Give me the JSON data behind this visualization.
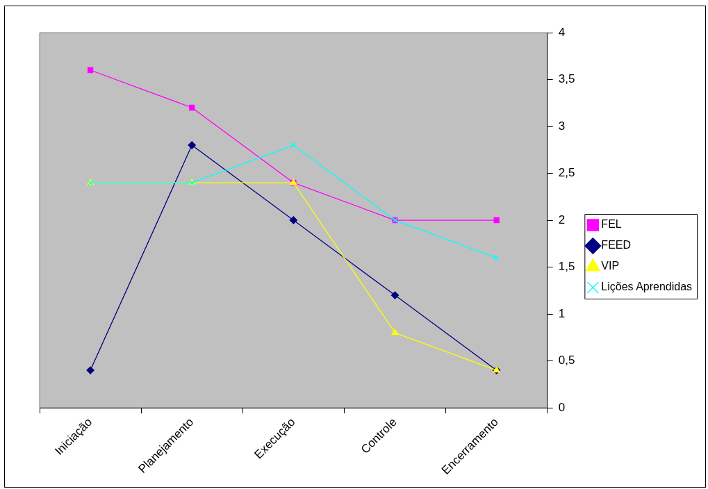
{
  "chart_data": {
    "type": "line",
    "categories": [
      "Iniciação",
      "Planejamento",
      "Execução",
      "Controle",
      "Encerramento"
    ],
    "series": [
      {
        "name": "FEL",
        "color": "#ff00ff",
        "marker": "square",
        "values": [
          3.6,
          3.2,
          2.4,
          2.0,
          2.0
        ]
      },
      {
        "name": "FEED",
        "color": "#000080",
        "marker": "diamond",
        "values": [
          0.4,
          2.8,
          2.0,
          1.2,
          0.4
        ]
      },
      {
        "name": "VIP",
        "color": "#ffff00",
        "marker": "triangle",
        "values": [
          2.4,
          2.4,
          2.4,
          0.8,
          0.4
        ]
      },
      {
        "name": "Lições Aprendidas",
        "color": "#00ffff",
        "marker": "cross",
        "values": [
          2.4,
          2.4,
          2.8,
          2.0,
          1.6
        ]
      }
    ],
    "ylim": [
      0,
      4
    ],
    "yticks": [
      0,
      {
        "value": 0.5,
        "label": "0,5"
      },
      1,
      {
        "value": 1.5,
        "label": "1,5"
      },
      2,
      {
        "value": 2.5,
        "label": "2,5"
      },
      3,
      {
        "value": 3.5,
        "label": "3,5"
      },
      4
    ],
    "legend": "right"
  }
}
